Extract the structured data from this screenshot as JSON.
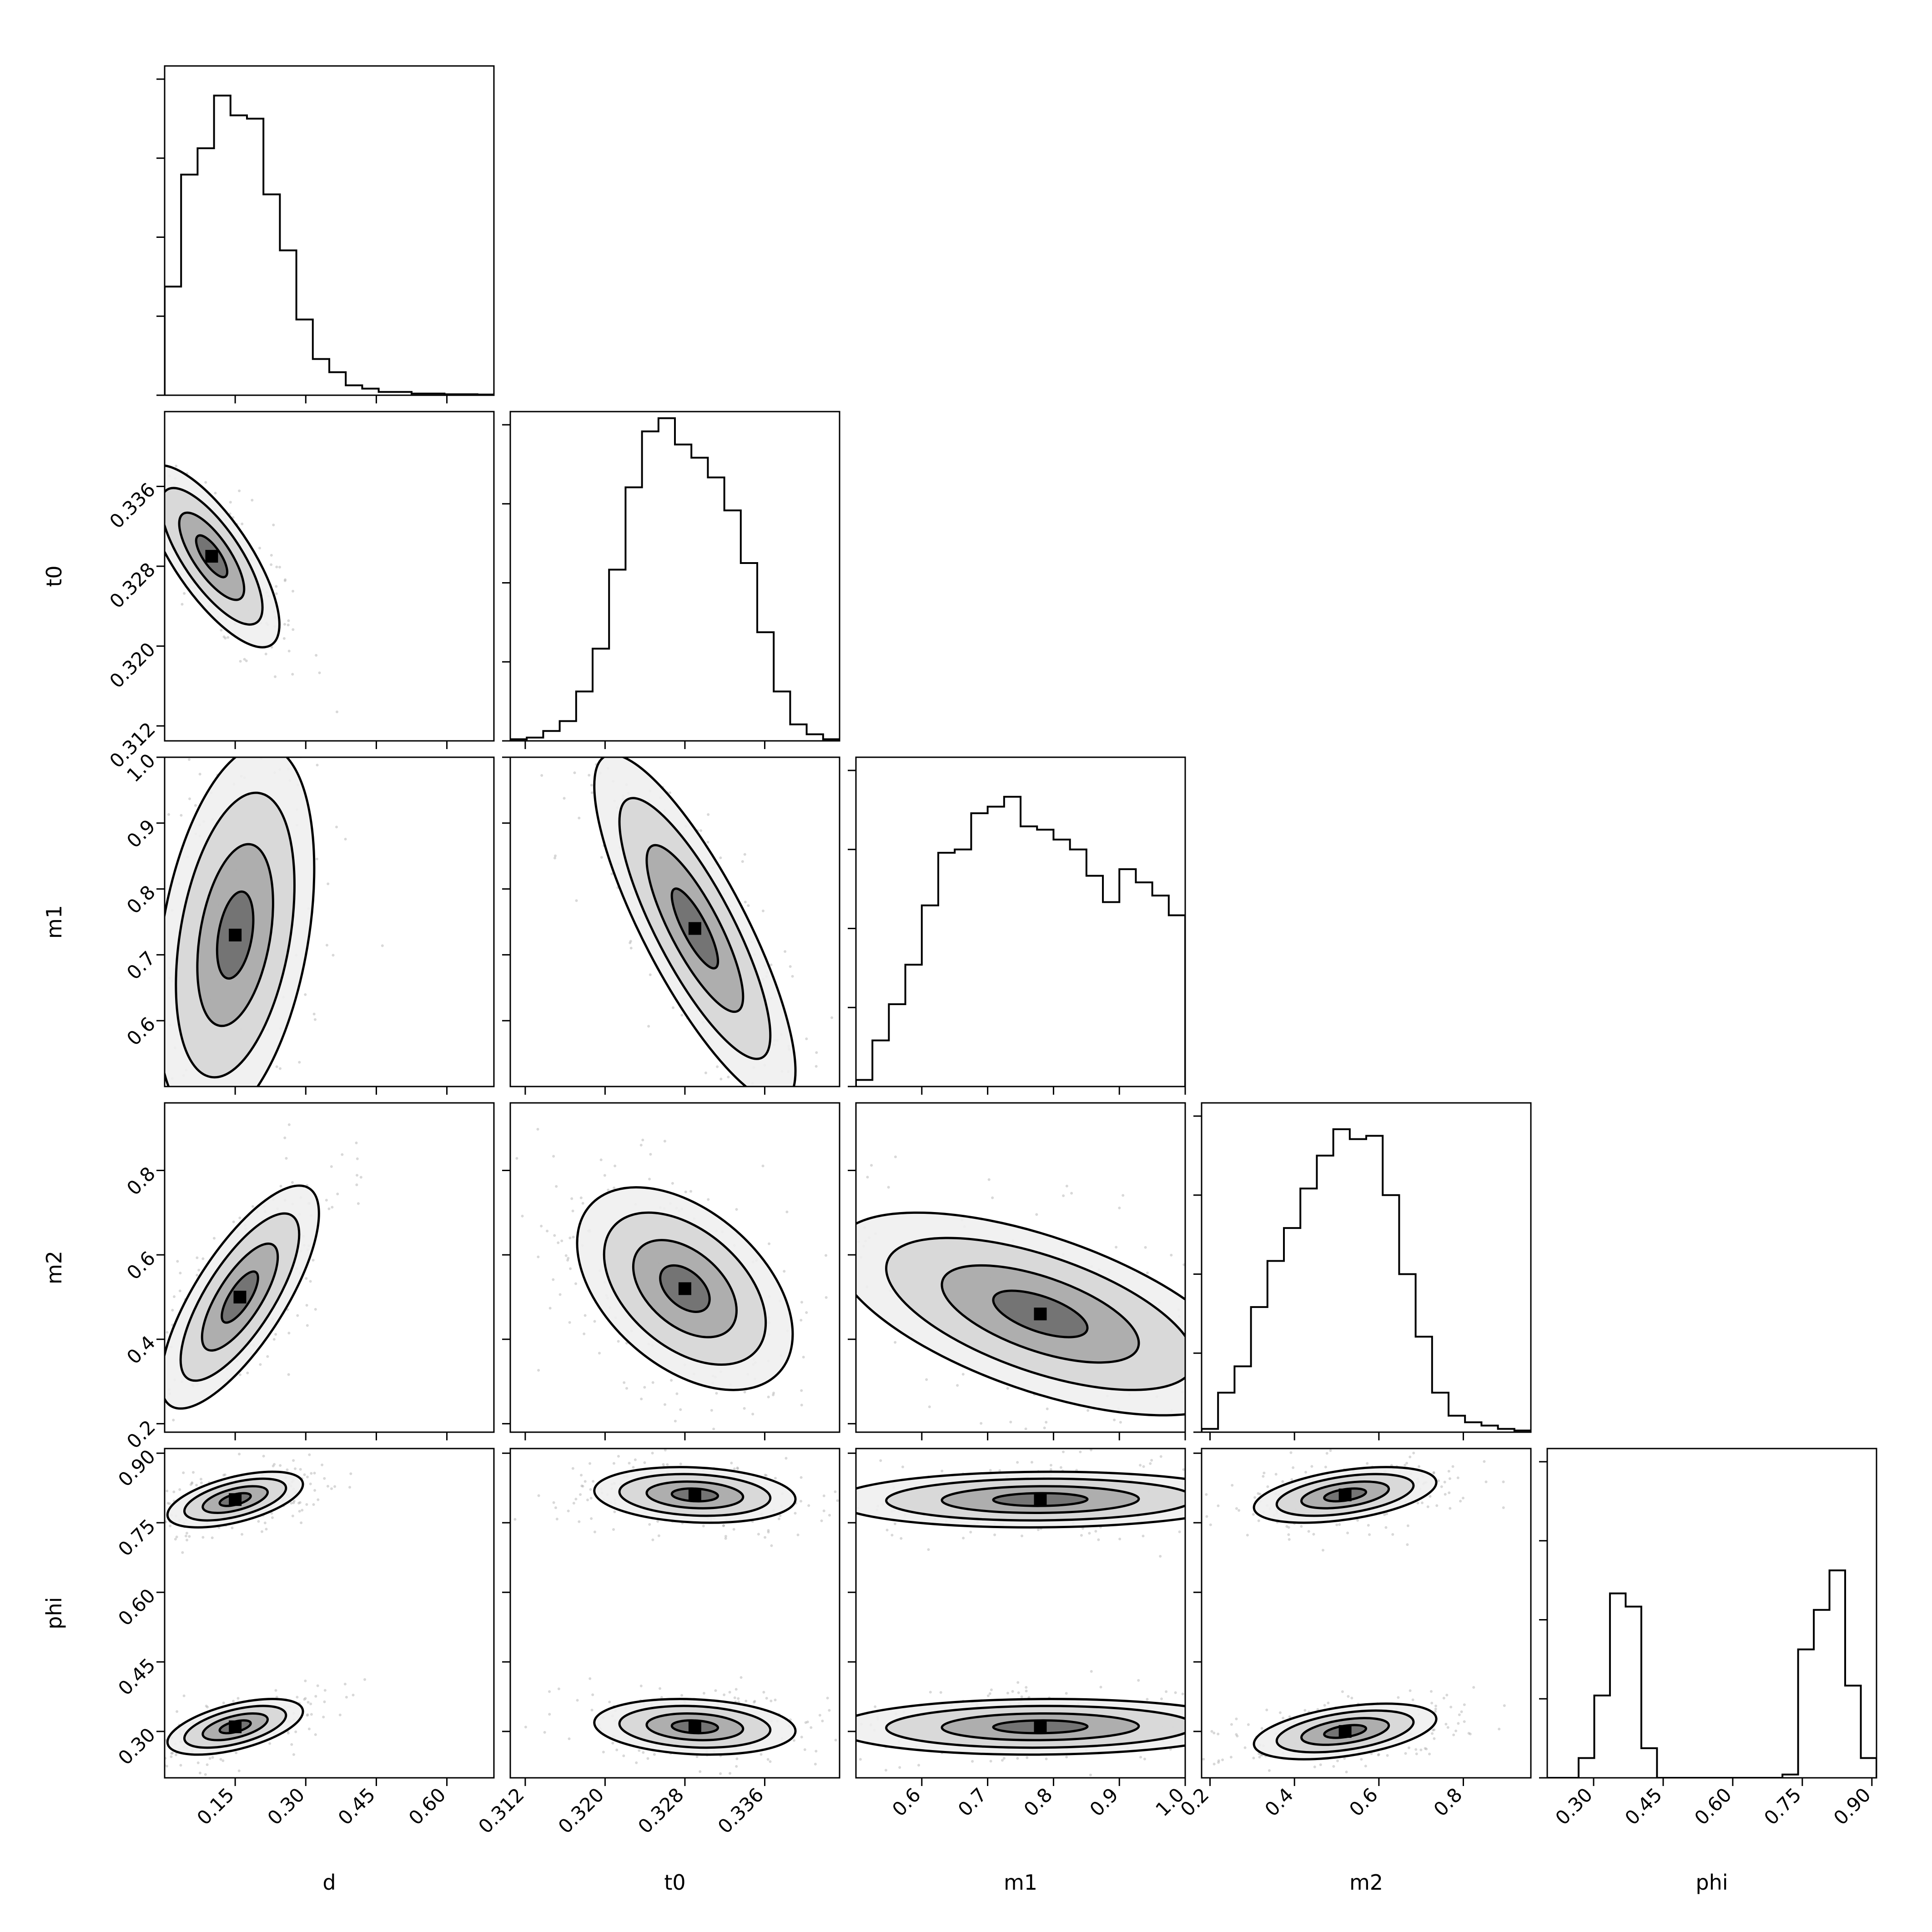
{
  "chart_data": {
    "type": "corner",
    "parameters": [
      "d",
      "t0",
      "m1",
      "m2",
      "phi"
    ],
    "ranges": {
      "d": [
        0.0,
        0.7
      ],
      "t0": [
        0.3105,
        0.3435
      ],
      "m1": [
        0.5,
        1.0
      ],
      "m2": [
        0.18,
        0.96
      ],
      "phi": [
        0.2,
        0.91
      ]
    },
    "ticks": {
      "d": [
        0.15,
        0.3,
        0.45,
        0.6
      ],
      "t0": [
        0.312,
        0.32,
        0.328,
        0.336
      ],
      "m1": [
        0.6,
        0.7,
        0.8,
        0.9,
        1.0
      ],
      "m2": [
        0.2,
        0.4,
        0.6,
        0.8
      ],
      "phi": [
        0.3,
        0.45,
        0.6,
        0.75,
        0.9
      ]
    },
    "tick_labels": {
      "d": [
        "0.15",
        "0.30",
        "0.45",
        "0.60"
      ],
      "t0": [
        "0.312",
        "0.320",
        "0.328",
        "0.336"
      ],
      "m1": [
        "0.6",
        "0.7",
        "0.8",
        "0.9",
        "1.0"
      ],
      "m2": [
        "0.2",
        "0.4",
        "0.6",
        "0.8"
      ],
      "phi": [
        "0.30",
        "0.45",
        "0.60",
        "0.75",
        "0.90"
      ]
    },
    "histograms": {
      "d": [
        0.33,
        0.67,
        0.75,
        0.91,
        0.85,
        0.84,
        0.61,
        0.44,
        0.23,
        0.11,
        0.07,
        0.03,
        0.02,
        0.01,
        0.01,
        0.005,
        0.005,
        0.003,
        0.003,
        0.002
      ],
      "t0": [
        0.005,
        0.01,
        0.03,
        0.06,
        0.15,
        0.28,
        0.52,
        0.77,
        0.94,
        0.98,
        0.9,
        0.86,
        0.8,
        0.7,
        0.54,
        0.33,
        0.15,
        0.05,
        0.02,
        0.005
      ],
      "m1": [
        0.02,
        0.14,
        0.25,
        0.37,
        0.55,
        0.71,
        0.72,
        0.83,
        0.85,
        0.88,
        0.79,
        0.78,
        0.75,
        0.72,
        0.64,
        0.56,
        0.66,
        0.62,
        0.58,
        0.52
      ],
      "m2": [
        0.01,
        0.12,
        0.2,
        0.38,
        0.52,
        0.62,
        0.74,
        0.84,
        0.92,
        0.89,
        0.9,
        0.72,
        0.48,
        0.29,
        0.12,
        0.05,
        0.03,
        0.02,
        0.01,
        0.005
      ],
      "phi": [
        0.0,
        0.0,
        0.06,
        0.25,
        0.56,
        0.52,
        0.09,
        0.0,
        0.0,
        0.0,
        0.0,
        0.0,
        0.0,
        0.0,
        0.0,
        0.01,
        0.39,
        0.51,
        0.63,
        0.28,
        0.06
      ]
    },
    "pair_density": {
      "t0|d": {
        "means": [
          [
            0.1,
            0.329
          ]
        ],
        "sd": [
          0.06,
          0.0038
        ],
        "rho": -0.75
      },
      "m1|d": {
        "means": [
          [
            0.15,
            0.73
          ]
        ],
        "sd": [
          0.07,
          0.12
        ],
        "rho": 0.35
      },
      "m1|t0": {
        "means": [
          [
            0.329,
            0.74
          ]
        ],
        "sd": [
          0.0042,
          0.11
        ],
        "rho": -0.82
      },
      "m2|d": {
        "means": [
          [
            0.16,
            0.5
          ]
        ],
        "sd": [
          0.07,
          0.11
        ],
        "rho": 0.75
      },
      "m2|t0": {
        "means": [
          [
            0.328,
            0.52
          ]
        ],
        "sd": [
          0.0045,
          0.1
        ],
        "rho": -0.45
      },
      "m2|m1": {
        "means": [
          [
            0.78,
            0.46
          ]
        ],
        "sd": [
          0.13,
          0.1
        ],
        "rho": -0.6
      },
      "phi|d": {
        "means": [
          [
            0.15,
            0.8
          ],
          [
            0.15,
            0.31
          ]
        ],
        "sd": [
          0.06,
          0.025
        ],
        "rho": 0.55
      },
      "phi|t0": {
        "means": [
          [
            0.329,
            0.81
          ],
          [
            0.329,
            0.31
          ]
        ],
        "sd": [
          0.0042,
          0.025
        ],
        "rho": -0.15
      },
      "phi|m1": {
        "means": [
          [
            0.78,
            0.8
          ],
          [
            0.78,
            0.31
          ]
        ],
        "sd": [
          0.13,
          0.025
        ],
        "rho": 0.05
      },
      "phi|m2": {
        "means": [
          [
            0.52,
            0.81
          ],
          [
            0.52,
            0.3
          ]
        ],
        "sd": [
          0.09,
          0.025
        ],
        "rho": 0.45
      }
    },
    "grid": false,
    "legend": "none"
  }
}
